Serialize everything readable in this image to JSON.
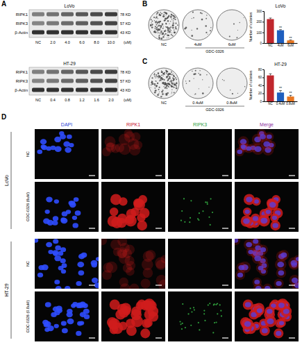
{
  "panel_labels": [
    "A",
    "B",
    "C",
    "D"
  ],
  "blots": [
    {
      "cell_line": "LoVo",
      "proteins": [
        "RIPK1",
        "RIPK3",
        "β-Actin"
      ],
      "sizes": [
        "78 KD",
        "57 KD",
        "43 KD"
      ],
      "lanes": [
        "NC",
        "2.0",
        "4.0",
        "6.0",
        "8.0",
        "10.0"
      ],
      "unit": "(uM)"
    },
    {
      "cell_line": "HT-29",
      "proteins": [
        "RIPK1",
        "RIPK3",
        "β-Actin"
      ],
      "sizes": [
        "78 KD",
        "57 KD",
        "43 KD"
      ],
      "lanes": [
        "NC",
        "0.4",
        "0.8",
        "1.2",
        "1.6",
        "2.0"
      ],
      "unit": "(uM)"
    }
  ],
  "colony_plates": [
    {
      "labels": [
        "NC",
        "4uM",
        "6uM"
      ],
      "treatment": "GDC-0326"
    },
    {
      "labels": [
        "NC",
        "0.4uM",
        "0.8uM"
      ],
      "treatment": "GDC-0326"
    }
  ],
  "chart_data": [
    {
      "type": "bar",
      "title": "LoVo",
      "y_label": "Number of colonies",
      "categories": [
        "NC",
        "4uM",
        "6uM"
      ],
      "values": [
        225,
        120,
        25
      ],
      "errors": [
        10,
        6,
        4
      ],
      "significance": [
        null,
        "**",
        "**"
      ],
      "colors": [
        "#c0272d",
        "#1f5fbf",
        "#e87722"
      ],
      "ylim": [
        0,
        300
      ],
      "yticks": [
        0,
        100,
        200,
        300
      ]
    },
    {
      "type": "bar",
      "title": "HT-29",
      "y_label": "Number of colonies",
      "categories": [
        "NC",
        "0.4uM",
        "0.8uM"
      ],
      "values": [
        65,
        22,
        12
      ],
      "errors": [
        4,
        5,
        3
      ],
      "significance": [
        null,
        "**",
        "**"
      ],
      "colors": [
        "#c0272d",
        "#1f5fbf",
        "#e87722"
      ],
      "ylim": [
        0,
        80
      ],
      "yticks": [
        0,
        20,
        40,
        60,
        80
      ]
    }
  ],
  "immunofluorescence": {
    "channels": [
      "DAPI",
      "RIPK1",
      "RIPK3",
      "Merge"
    ],
    "groups": [
      {
        "cell_line": "LoVo",
        "rows": [
          "NC",
          "GDC-0326 (6uM)"
        ]
      },
      {
        "cell_line": "HT-29",
        "rows": [
          "NC",
          "GDC-0326 (0.8uM)"
        ]
      }
    ]
  }
}
